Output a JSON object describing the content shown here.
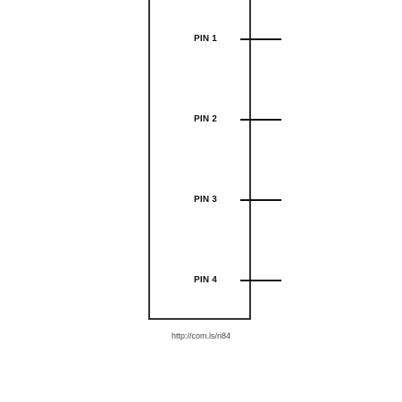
{
  "component": {
    "pins": [
      {
        "label": "PIN 1"
      },
      {
        "label": "PIN 2"
      },
      {
        "label": "PIN 3"
      },
      {
        "label": "PIN 4"
      }
    ],
    "border_color": "#333333",
    "lead_color": "#111111"
  },
  "footer": {
    "url_text": "http://com.ls/ri84"
  }
}
